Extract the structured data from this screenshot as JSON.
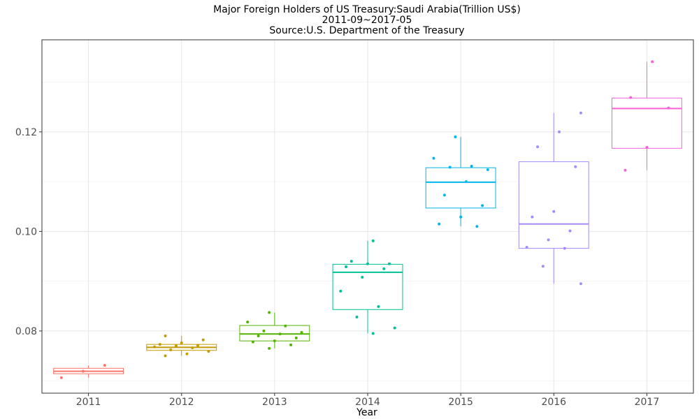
{
  "chart_data": {
    "type": "box",
    "title_lines": [
      "Major Foreign Holders of US Treasury:Saudi Arabia(Trillion US$)",
      "2011-09~2017-05",
      "Source:U.S. Department of the Treasury"
    ],
    "xlabel": "Year",
    "ylabel": "",
    "ylim": [
      0.0675,
      0.1385
    ],
    "yticks": [
      0.08,
      0.1,
      0.12
    ],
    "ytick_labels": [
      "0.08",
      "0.10",
      "0.12"
    ],
    "grid": true,
    "legend": "none",
    "categories": [
      "2011",
      "2012",
      "2013",
      "2014",
      "2015",
      "2016",
      "2017"
    ],
    "colors": [
      "#F8766D",
      "#C49A00",
      "#53B400",
      "#00C094",
      "#00B6EB",
      "#A58AFF",
      "#FB61D7"
    ],
    "boxes": [
      {
        "year": "2011",
        "min": 0.0706,
        "q1": 0.0714,
        "median": 0.0719,
        "q3": 0.0725,
        "max": 0.0731
      },
      {
        "year": "2012",
        "min": 0.075,
        "q1": 0.0761,
        "median": 0.0767,
        "q3": 0.0773,
        "max": 0.079
      },
      {
        "year": "2013",
        "min": 0.0765,
        "q1": 0.078,
        "median": 0.0794,
        "q3": 0.0811,
        "max": 0.0837
      },
      {
        "year": "2014",
        "min": 0.0795,
        "q1": 0.0843,
        "median": 0.0918,
        "q3": 0.0934,
        "max": 0.0981
      },
      {
        "year": "2015",
        "min": 0.101,
        "q1": 0.1047,
        "median": 0.1099,
        "q3": 0.1128,
        "max": 0.119
      },
      {
        "year": "2016",
        "min": 0.0895,
        "q1": 0.0966,
        "median": 0.1015,
        "q3": 0.114,
        "max": 0.1238
      },
      {
        "year": "2017",
        "min": 0.1123,
        "q1": 0.1167,
        "median": 0.1247,
        "q3": 0.1268,
        "max": 0.1341
      }
    ],
    "points": [
      {
        "year": "2011",
        "values": [
          0.0706,
          0.0719,
          0.0731
        ]
      },
      {
        "year": "2012",
        "values": [
          0.075,
          0.0754,
          0.0759,
          0.0762,
          0.0766,
          0.0768,
          0.077,
          0.0771,
          0.0773,
          0.0776,
          0.0782,
          0.079
        ]
      },
      {
        "year": "2013",
        "values": [
          0.0765,
          0.0772,
          0.0778,
          0.078,
          0.0786,
          0.079,
          0.0794,
          0.0797,
          0.08,
          0.081,
          0.0818,
          0.0837
        ]
      },
      {
        "year": "2014",
        "values": [
          0.0795,
          0.0806,
          0.0828,
          0.0849,
          0.088,
          0.0908,
          0.0925,
          0.0929,
          0.0935,
          0.0935,
          0.094,
          0.0981
        ]
      },
      {
        "year": "2015",
        "values": [
          0.101,
          0.1015,
          0.1029,
          0.1052,
          0.1073,
          0.11,
          0.1124,
          0.1129,
          0.1131,
          0.1147,
          0.119
        ]
      },
      {
        "year": "2016",
        "values": [
          0.0895,
          0.093,
          0.0966,
          0.0968,
          0.0983,
          0.1001,
          0.1029,
          0.104,
          0.113,
          0.117,
          0.12,
          0.1238
        ]
      },
      {
        "year": "2017",
        "values": [
          0.1123,
          0.1169,
          0.1248,
          0.1269,
          0.1341
        ]
      }
    ]
  }
}
